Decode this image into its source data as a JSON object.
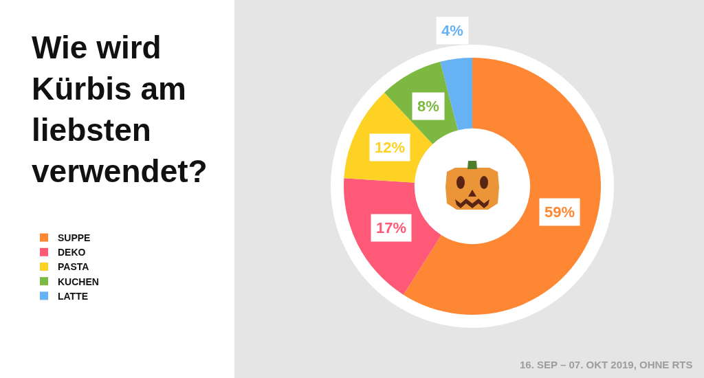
{
  "chart_data": {
    "type": "donut",
    "title": "Wie wird Kürbis am liebsten verwendet?",
    "categories": [
      "SUPPE",
      "DEKO",
      "PASTA",
      "KUCHEN",
      "LATTE"
    ],
    "values": [
      59,
      17,
      12,
      8,
      4
    ],
    "colors": [
      "#fe8733",
      "#fe5a77",
      "#fed125",
      "#7db843",
      "#67b1f5"
    ],
    "value_labels": [
      "59%",
      "17%",
      "12%",
      "8%",
      "4%"
    ],
    "legend": "left",
    "annotations": [
      "16. SEP – 07. OKT 2019, OHNE RTS"
    ]
  }
}
